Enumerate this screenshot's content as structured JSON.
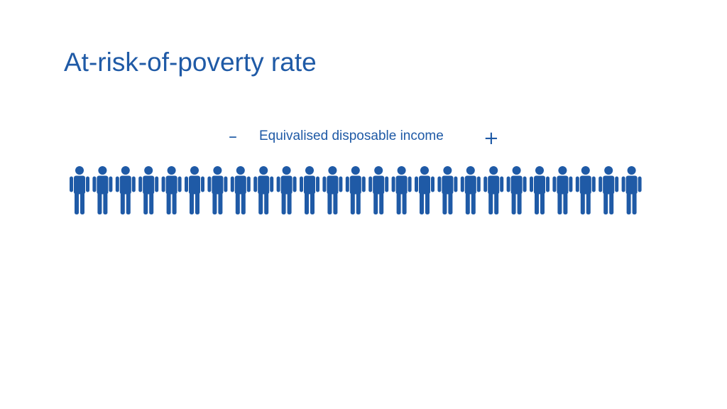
{
  "slide": {
    "title": "At-risk-of-poverty rate"
  },
  "income_axis": {
    "minus_symbol": "–",
    "label": "Equivalised disposable income",
    "plus_symbol": "+"
  },
  "population": {
    "person_count": 25,
    "person_icon": "person-icon",
    "color": "#1f5aa6"
  }
}
